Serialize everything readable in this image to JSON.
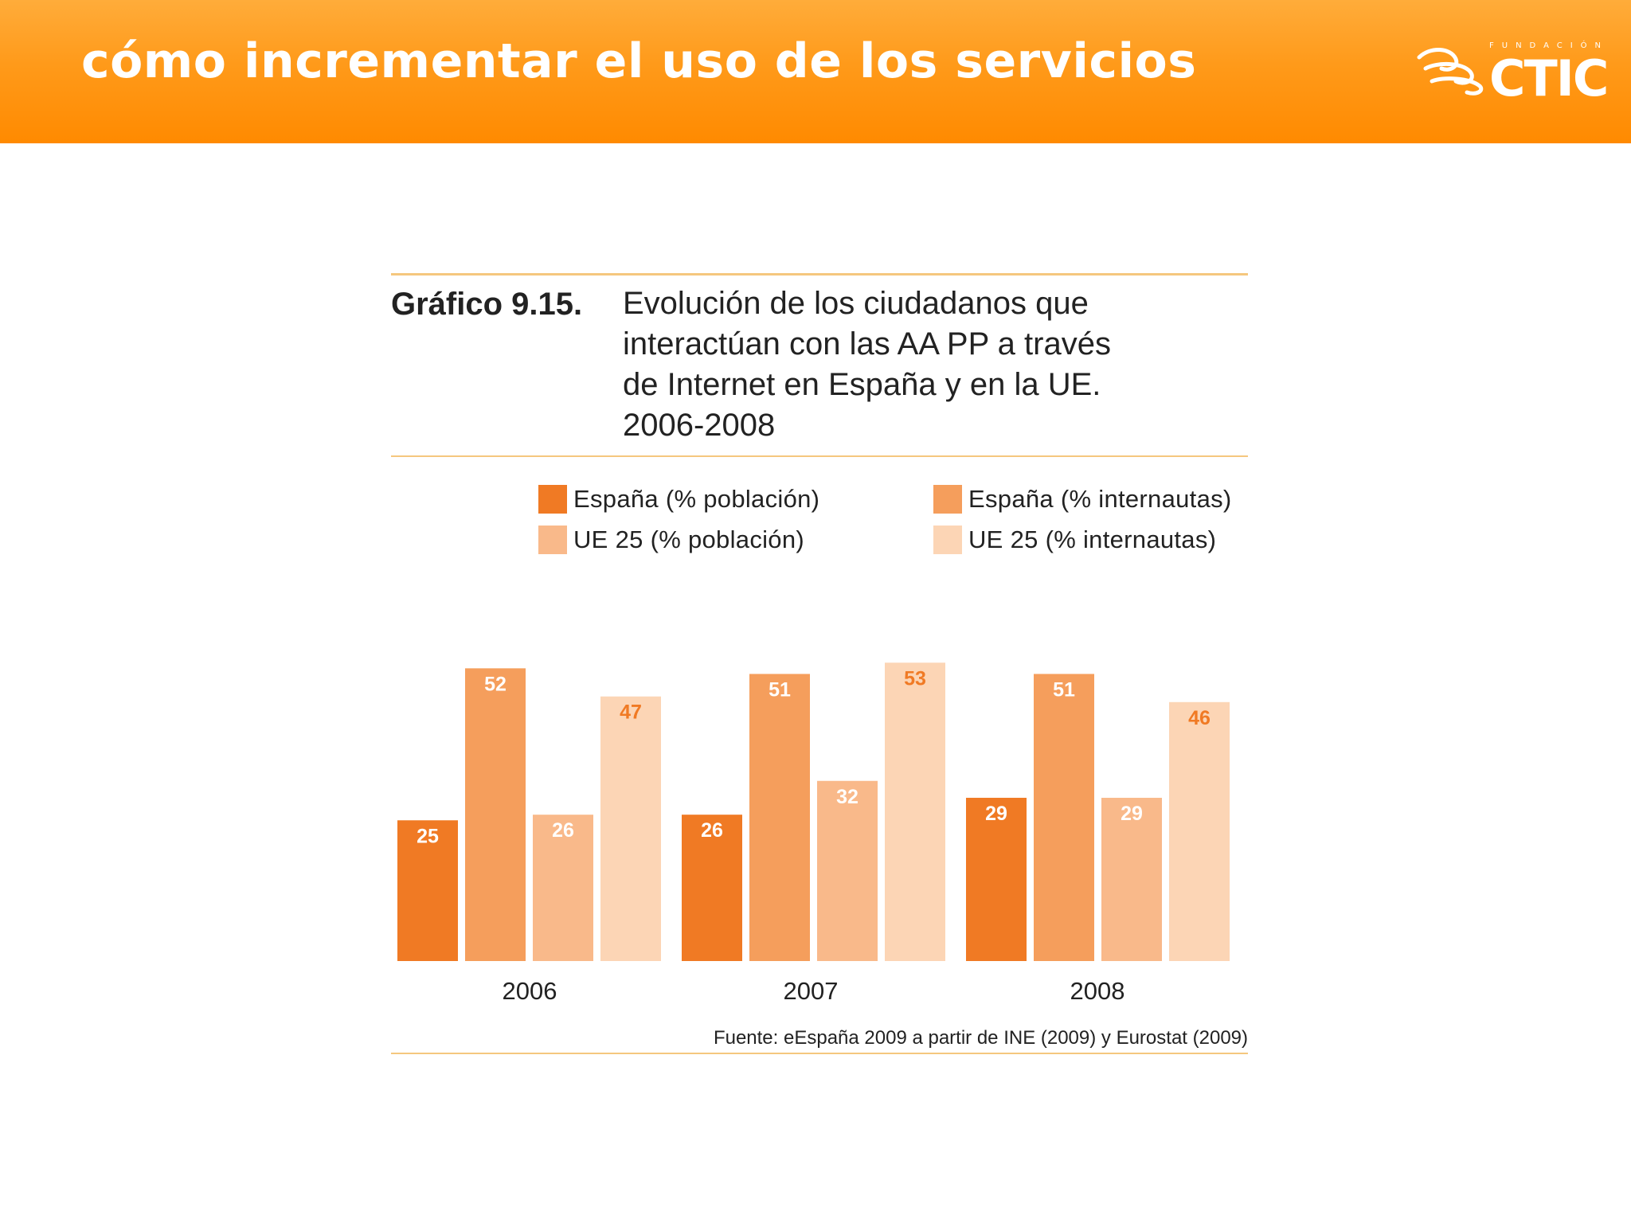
{
  "header": {
    "title": "cómo incrementar el uso de los servicios",
    "logo_small": "FUNDACIÓN",
    "logo_text": "CTIC"
  },
  "figure": {
    "label": "Gráfico 9.15.",
    "title_lines": [
      "Evolución de los ciudadanos que",
      "interactúan con las AA PP a través",
      "de Internet en España y en la UE.",
      "2006-2008"
    ],
    "source": "Fuente: eEspaña 2009 a partir de INE (2009) y Eurostat (2009)"
  },
  "colors": {
    "header": "#ff9a1a",
    "rule": "#f5c77e",
    "espana_poblacion": "#f07a24",
    "espana_internautas": "#f59e5c",
    "ue25_poblacion": "#f9b98a",
    "ue25_internautas": "#fcd5b5",
    "label_dark": "#ffffff",
    "label_light": "#f07a24"
  },
  "chart_data": {
    "type": "bar",
    "categories": [
      "2006",
      "2007",
      "2008"
    ],
    "series": [
      {
        "name": "España (% población)",
        "values": [
          25,
          26,
          29
        ],
        "color": "#f07a24",
        "label_color": "#ffffff"
      },
      {
        "name": "España (% internautas)",
        "values": [
          52,
          51,
          51
        ],
        "color": "#f59e5c",
        "label_color": "#ffffff"
      },
      {
        "name": "UE 25 (% población)",
        "values": [
          26,
          32,
          29
        ],
        "color": "#f9b98a",
        "label_color": "#ffffff"
      },
      {
        "name": "UE 25 (% internautas)",
        "values": [
          47,
          53,
          46
        ],
        "color": "#fcd5b5",
        "label_color": "#f07a24"
      }
    ],
    "title": "Evolución de los ciudadanos que interactúan con las AA PP a través de Internet en España y en la UE. 2006-2008",
    "xlabel": "",
    "ylabel": "",
    "ylim": [
      0,
      60
    ],
    "grid": false,
    "legend_position": "top"
  }
}
